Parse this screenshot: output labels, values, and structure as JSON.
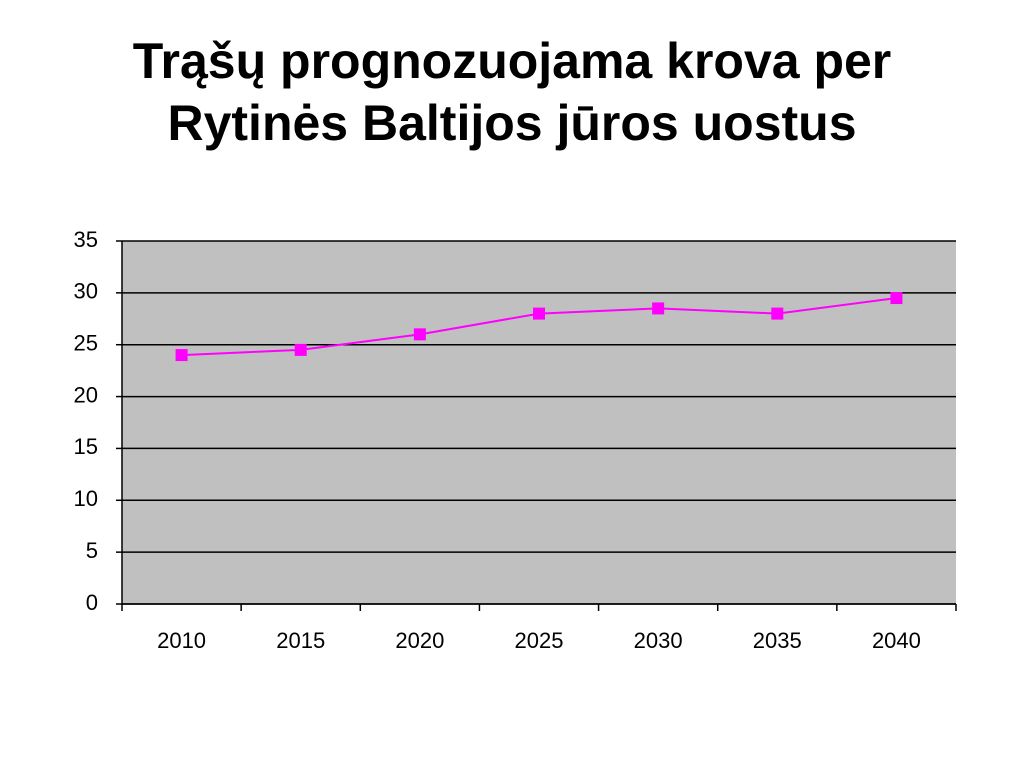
{
  "chart_data": {
    "type": "line",
    "title": "Trąšų prognozuojama krova per Rytinės Baltijos jūros uostus",
    "categories": [
      "2010",
      "2015",
      "2020",
      "2025",
      "2030",
      "2035",
      "2040"
    ],
    "series": [
      {
        "color": "#ff00ff",
        "values": [
          24,
          24.5,
          26,
          28,
          28.5,
          28,
          29.5
        ]
      }
    ],
    "ylim": [
      0,
      35
    ],
    "yticks": [
      0,
      5,
      10,
      15,
      20,
      25,
      30,
      35
    ],
    "grid": true
  }
}
